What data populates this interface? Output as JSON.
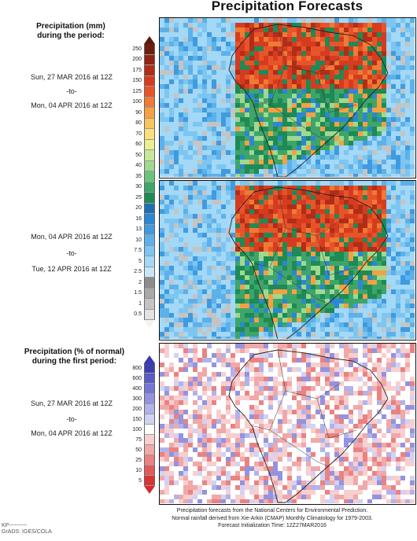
{
  "title": "Precipitation Forecasts",
  "panel1": {
    "heading_line1": "Precipitation (mm)",
    "heading_line2": "during the period:",
    "start": "Sun, 27 MAR 2016 at 12Z",
    "to": "-to-",
    "end": "Mon, 04 APR 2016 at 12Z"
  },
  "panel2": {
    "start": "Mon, 04 APR 2016 at 12Z",
    "to": "-to-",
    "end": "Tue, 12 APR 2016 at 12Z"
  },
  "panel3": {
    "heading_line1": "Precipitation (% of normal)",
    "heading_line2": "during the first period:",
    "start": "Sun, 27 MAR 2016 at 12Z",
    "to": "-to-",
    "end": "Mon, 04 APR 2016 at 12Z"
  },
  "mm_scale": {
    "ticks": [
      "250",
      "200",
      "175",
      "150",
      "125",
      "100",
      "90",
      "80",
      "70",
      "60",
      "50",
      "40",
      "35",
      "30",
      "25",
      "20",
      "16",
      "13",
      "10",
      "7.5",
      "5",
      "2.5",
      "2",
      "1.5",
      "1",
      "0.5"
    ],
    "colors": [
      "#6b1f0f",
      "#8e2414",
      "#b12d18",
      "#d53c1f",
      "#e8542a",
      "#f07a35",
      "#f5a044",
      "#f8c45b",
      "#fbe07a",
      "#e9f08f",
      "#c6e89a",
      "#9fd98f",
      "#6cc47b",
      "#3ea56a",
      "#1e8a55",
      "#1f6fb5",
      "#2d86d2",
      "#3f9be0",
      "#5cb1ea",
      "#7dc6f1",
      "#a3d8f6",
      "#c5e6f8",
      "#8c8c8c",
      "#a8a8a8",
      "#c4c4c4",
      "#e2e2e2"
    ]
  },
  "pct_scale": {
    "ticks": [
      "800",
      "600",
      "400",
      "300",
      "200",
      "150",
      "100",
      "75",
      "50",
      "25",
      "10",
      "5"
    ],
    "colors": [
      "#3f3fb2",
      "#5a5ac8",
      "#7575d6",
      "#9393e0",
      "#b2b2eb",
      "#d2d2f4",
      "#ffffff",
      "#f7cfcf",
      "#f1a8a8",
      "#ea8282",
      "#e35959",
      "#d93333"
    ]
  },
  "credits": {
    "line1": "Precipitation forecasts from the National Centers for Environmental Prediction.",
    "line2": "Normal rainfall derived from Xie-Arkin (CMAP) Monthly Climatology for 1979-2003.",
    "line3": "Forecast Initialization Time: 12Z27MAR2016"
  },
  "logo": {
    "line1": "KP-~~~~~",
    "line2": "GrADS: IGES/COLA"
  }
}
